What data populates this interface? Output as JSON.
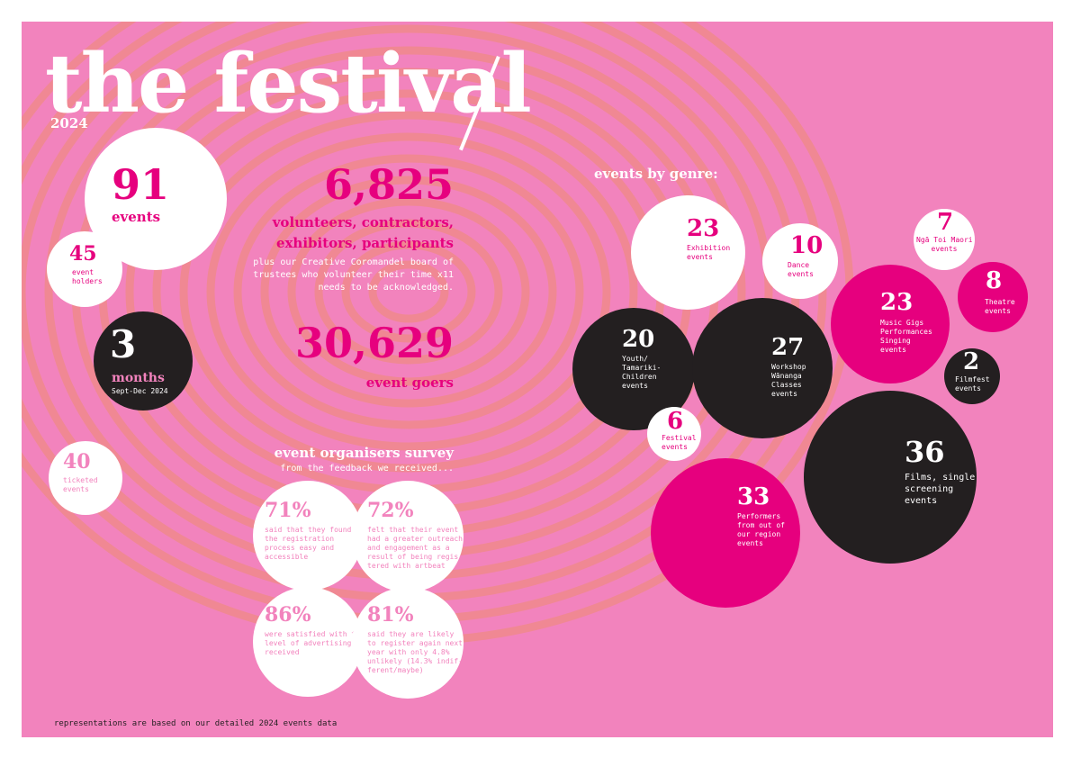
{
  "title": "the festival",
  "year": "2024",
  "footer": "representations are based on our detailed 2024 events data",
  "stats": {
    "events": {
      "value": "91",
      "label": "events"
    },
    "holders": {
      "value": "45",
      "label": "event\nholders"
    },
    "months": {
      "value": "3",
      "label": "months",
      "sub": "Sept-Dec 2024"
    },
    "ticketed": {
      "value": "40",
      "label": "ticketed\nevents"
    },
    "volunteers": {
      "value": "6,825",
      "label1": "volunteers, contractors,",
      "label2": "exhibitors, participants",
      "note": "plus our Creative Coromandel board of\ntrustees who volunteer their time x11\nneeds to be acknowledged."
    },
    "goers": {
      "value": "30,629",
      "label": "event goers"
    }
  },
  "survey": {
    "title": "event organisers survey",
    "subtitle": "from the feedback we received...",
    "items": [
      {
        "pct": "71%",
        "text": "said that they found\nthe registration\nprocess easy and\naccessible"
      },
      {
        "pct": "72%",
        "text": "felt that their event\nhad a greater outreach\nand engagement as a\nresult of being regis-\ntered with artbeat"
      },
      {
        "pct": "86%",
        "text": "were satisfied with the\nlevel of advertising\nreceived"
      },
      {
        "pct": "81%",
        "text": "said they are likely\nto register again next\nyear with only 4.8%\nunlikely (14.3% indif-\nferent/maybe)"
      }
    ]
  },
  "genres": {
    "heading": "events by genre:",
    "items": [
      {
        "value": "23",
        "label": "Exhibition\nevents"
      },
      {
        "value": "10",
        "label": "Dance\nevents"
      },
      {
        "value": "7",
        "label": "Ngā Toi Maori\nevents"
      },
      {
        "value": "8",
        "label": "Theatre\nevents"
      },
      {
        "value": "23",
        "label": "Music Gigs\nPerformances\nSinging\nevents"
      },
      {
        "value": "20",
        "label": "Youth/\nTamariki-\nChildren\nevents"
      },
      {
        "value": "27",
        "label": "Workshop\nWānanga\nClasses\nevents"
      },
      {
        "value": "2",
        "label": "Filmfest\nevents"
      },
      {
        "value": "6",
        "label": "Festival\nevents"
      },
      {
        "value": "36",
        "label": "Films, single\nscreening\nevents"
      },
      {
        "value": "33",
        "label": "Performers\nfrom out of\nour region\nevents"
      }
    ]
  },
  "colors": {
    "background": "#f283bd",
    "magenta": "#e6007e",
    "dark": "#231f20",
    "print": "#f08a86"
  }
}
